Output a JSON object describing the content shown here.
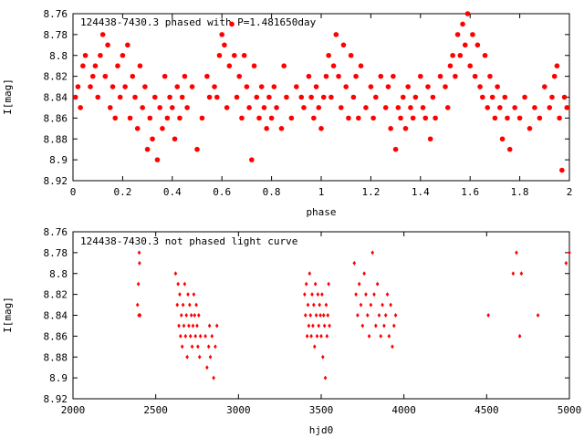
{
  "chart_data": [
    {
      "type": "scatter",
      "title": "124438-7430.3 phased with P=1.481650day",
      "xlabel": "phase",
      "ylabel": "I[mag]",
      "xlim": [
        0,
        2
      ],
      "ylim": [
        8.76,
        8.92
      ],
      "y_inverted": true,
      "grid": false,
      "marker_color": "#ff0000",
      "marker": "filled-circle",
      "x_ticks": [
        "0",
        "0.2",
        "0.4",
        "0.6",
        "0.8",
        "1",
        "1.2",
        "1.4",
        "1.6",
        "1.8",
        "2"
      ],
      "y_ticks": [
        "8.76",
        "8.78",
        "8.8",
        "8.82",
        "8.84",
        "8.86",
        "8.88",
        "8.9",
        "8.92"
      ],
      "points": [
        [
          0.01,
          8.84
        ],
        [
          0.02,
          8.83
        ],
        [
          0.03,
          8.85
        ],
        [
          0.04,
          8.81
        ],
        [
          0.05,
          8.8
        ],
        [
          0.07,
          8.83
        ],
        [
          0.08,
          8.82
        ],
        [
          0.09,
          8.81
        ],
        [
          0.1,
          8.84
        ],
        [
          0.11,
          8.8
        ],
        [
          0.12,
          8.78
        ],
        [
          0.13,
          8.82
        ],
        [
          0.14,
          8.79
        ],
        [
          0.15,
          8.85
        ],
        [
          0.16,
          8.83
        ],
        [
          0.17,
          8.86
        ],
        [
          0.18,
          8.81
        ],
        [
          0.19,
          8.84
        ],
        [
          0.2,
          8.8
        ],
        [
          0.21,
          8.83
        ],
        [
          0.22,
          8.79
        ],
        [
          0.23,
          8.86
        ],
        [
          0.24,
          8.82
        ],
        [
          0.25,
          8.84
        ],
        [
          0.26,
          8.87
        ],
        [
          0.27,
          8.81
        ],
        [
          0.28,
          8.85
        ],
        [
          0.29,
          8.83
        ],
        [
          0.3,
          8.89
        ],
        [
          0.31,
          8.86
        ],
        [
          0.32,
          8.88
        ],
        [
          0.33,
          8.84
        ],
        [
          0.34,
          8.9
        ],
        [
          0.35,
          8.85
        ],
        [
          0.36,
          8.87
        ],
        [
          0.37,
          8.82
        ],
        [
          0.38,
          8.86
        ],
        [
          0.39,
          8.84
        ],
        [
          0.4,
          8.85
        ],
        [
          0.41,
          8.88
        ],
        [
          0.42,
          8.83
        ],
        [
          0.43,
          8.86
        ],
        [
          0.44,
          8.84
        ],
        [
          0.45,
          8.82
        ],
        [
          0.46,
          8.85
        ],
        [
          0.48,
          8.83
        ],
        [
          0.5,
          8.89
        ],
        [
          0.52,
          8.86
        ],
        [
          0.54,
          8.82
        ],
        [
          0.55,
          8.84
        ],
        [
          0.57,
          8.83
        ],
        [
          0.58,
          8.84
        ],
        [
          0.59,
          8.8
        ],
        [
          0.6,
          8.78
        ],
        [
          0.61,
          8.79
        ],
        [
          0.62,
          8.85
        ],
        [
          0.63,
          8.81
        ],
        [
          0.64,
          8.77
        ],
        [
          0.65,
          8.8
        ],
        [
          0.66,
          8.84
        ],
        [
          0.67,
          8.82
        ],
        [
          0.68,
          8.86
        ],
        [
          0.69,
          8.8
        ],
        [
          0.7,
          8.83
        ],
        [
          0.71,
          8.85
        ],
        [
          0.72,
          8.9
        ],
        [
          0.73,
          8.81
        ],
        [
          0.74,
          8.84
        ],
        [
          0.75,
          8.86
        ],
        [
          0.76,
          8.83
        ],
        [
          0.77,
          8.85
        ],
        [
          0.78,
          8.87
        ],
        [
          0.79,
          8.84
        ],
        [
          0.8,
          8.86
        ],
        [
          0.81,
          8.83
        ],
        [
          0.82,
          8.85
        ],
        [
          0.84,
          8.87
        ],
        [
          0.85,
          8.81
        ],
        [
          0.86,
          8.84
        ],
        [
          0.88,
          8.86
        ],
        [
          0.9,
          8.83
        ],
        [
          0.92,
          8.84
        ],
        [
          0.93,
          8.85
        ],
        [
          0.95,
          8.82
        ],
        [
          0.96,
          8.84
        ],
        [
          0.97,
          8.86
        ],
        [
          0.98,
          8.83
        ],
        [
          0.99,
          8.85
        ],
        [
          1.0,
          8.87
        ],
        [
          1.01,
          8.84
        ],
        [
          1.02,
          8.82
        ],
        [
          1.03,
          8.8
        ],
        [
          1.04,
          8.84
        ],
        [
          1.05,
          8.81
        ],
        [
          1.06,
          8.78
        ],
        [
          1.07,
          8.82
        ],
        [
          1.08,
          8.85
        ],
        [
          1.09,
          8.79
        ],
        [
          1.1,
          8.83
        ],
        [
          1.11,
          8.86
        ],
        [
          1.12,
          8.8
        ],
        [
          1.13,
          8.84
        ],
        [
          1.14,
          8.82
        ],
        [
          1.15,
          8.86
        ],
        [
          1.16,
          8.81
        ],
        [
          1.18,
          8.85
        ],
        [
          1.2,
          8.83
        ],
        [
          1.21,
          8.86
        ],
        [
          1.22,
          8.84
        ],
        [
          1.24,
          8.82
        ],
        [
          1.26,
          8.85
        ],
        [
          1.27,
          8.83
        ],
        [
          1.28,
          8.87
        ],
        [
          1.29,
          8.82
        ],
        [
          1.3,
          8.89
        ],
        [
          1.31,
          8.85
        ],
        [
          1.32,
          8.86
        ],
        [
          1.33,
          8.84
        ],
        [
          1.34,
          8.87
        ],
        [
          1.35,
          8.83
        ],
        [
          1.36,
          8.85
        ],
        [
          1.37,
          8.86
        ],
        [
          1.38,
          8.84
        ],
        [
          1.4,
          8.82
        ],
        [
          1.41,
          8.85
        ],
        [
          1.42,
          8.86
        ],
        [
          1.43,
          8.83
        ],
        [
          1.44,
          8.88
        ],
        [
          1.45,
          8.84
        ],
        [
          1.46,
          8.86
        ],
        [
          1.48,
          8.82
        ],
        [
          1.5,
          8.83
        ],
        [
          1.51,
          8.85
        ],
        [
          1.52,
          8.81
        ],
        [
          1.53,
          8.8
        ],
        [
          1.54,
          8.82
        ],
        [
          1.55,
          8.78
        ],
        [
          1.56,
          8.8
        ],
        [
          1.57,
          8.77
        ],
        [
          1.58,
          8.79
        ],
        [
          1.59,
          8.76
        ],
        [
          1.6,
          8.81
        ],
        [
          1.61,
          8.78
        ],
        [
          1.62,
          8.82
        ],
        [
          1.63,
          8.79
        ],
        [
          1.64,
          8.83
        ],
        [
          1.65,
          8.84
        ],
        [
          1.66,
          8.8
        ],
        [
          1.67,
          8.85
        ],
        [
          1.68,
          8.82
        ],
        [
          1.69,
          8.84
        ],
        [
          1.7,
          8.86
        ],
        [
          1.71,
          8.83
        ],
        [
          1.72,
          8.85
        ],
        [
          1.73,
          8.88
        ],
        [
          1.74,
          8.84
        ],
        [
          1.75,
          8.86
        ],
        [
          1.76,
          8.89
        ],
        [
          1.78,
          8.85
        ],
        [
          1.8,
          8.86
        ],
        [
          1.82,
          8.84
        ],
        [
          1.84,
          8.87
        ],
        [
          1.86,
          8.85
        ],
        [
          1.88,
          8.86
        ],
        [
          1.9,
          8.83
        ],
        [
          1.92,
          8.85
        ],
        [
          1.93,
          8.84
        ],
        [
          1.94,
          8.82
        ],
        [
          1.95,
          8.81
        ],
        [
          1.96,
          8.86
        ],
        [
          1.97,
          8.91
        ],
        [
          1.98,
          8.84
        ],
        [
          1.99,
          8.85
        ]
      ]
    },
    {
      "type": "scatter",
      "title": "124438-7430.3 not phased light curve",
      "xlabel": "hjd0",
      "ylabel": "I[mag]",
      "xlim": [
        2000,
        5000
      ],
      "ylim": [
        8.76,
        8.92
      ],
      "y_inverted": true,
      "grid": false,
      "marker_color": "#ff0000",
      "marker": "diamond",
      "x_ticks": [
        "2000",
        "2500",
        "3000",
        "3500",
        "4000",
        "4500",
        "5000"
      ],
      "y_ticks": [
        "8.76",
        "8.78",
        "8.8",
        "8.82",
        "8.84",
        "8.86",
        "8.88",
        "8.9",
        "8.92"
      ],
      "points": [
        [
          2390,
          8.83
        ],
        [
          2395,
          8.81
        ],
        [
          2398,
          8.84
        ],
        [
          2400,
          8.78
        ],
        [
          2402,
          8.79
        ],
        [
          2405,
          8.84
        ],
        [
          2620,
          8.8
        ],
        [
          2630,
          8.83
        ],
        [
          2635,
          8.81
        ],
        [
          2640,
          8.85
        ],
        [
          2645,
          8.82
        ],
        [
          2650,
          8.86
        ],
        [
          2655,
          8.84
        ],
        [
          2660,
          8.87
        ],
        [
          2665,
          8.83
        ],
        [
          2670,
          8.85
        ],
        [
          2675,
          8.81
        ],
        [
          2680,
          8.86
        ],
        [
          2685,
          8.84
        ],
        [
          2690,
          8.88
        ],
        [
          2695,
          8.82
        ],
        [
          2700,
          8.85
        ],
        [
          2705,
          8.83
        ],
        [
          2710,
          8.86
        ],
        [
          2715,
          8.84
        ],
        [
          2720,
          8.87
        ],
        [
          2725,
          8.85
        ],
        [
          2730,
          8.82
        ],
        [
          2735,
          8.84
        ],
        [
          2740,
          8.86
        ],
        [
          2745,
          8.83
        ],
        [
          2750,
          8.85
        ],
        [
          2755,
          8.87
        ],
        [
          2760,
          8.84
        ],
        [
          2765,
          8.88
        ],
        [
          2770,
          8.86
        ],
        [
          2800,
          8.86
        ],
        [
          2810,
          8.89
        ],
        [
          2820,
          8.87
        ],
        [
          2825,
          8.85
        ],
        [
          2830,
          8.88
        ],
        [
          2840,
          8.86
        ],
        [
          2850,
          8.9
        ],
        [
          2860,
          8.87
        ],
        [
          2870,
          8.85
        ],
        [
          3400,
          8.82
        ],
        [
          3405,
          8.84
        ],
        [
          3410,
          8.81
        ],
        [
          3415,
          8.86
        ],
        [
          3420,
          8.83
        ],
        [
          3425,
          8.85
        ],
        [
          3430,
          8.8
        ],
        [
          3435,
          8.84
        ],
        [
          3440,
          8.86
        ],
        [
          3445,
          8.82
        ],
        [
          3450,
          8.85
        ],
        [
          3455,
          8.83
        ],
        [
          3460,
          8.87
        ],
        [
          3465,
          8.81
        ],
        [
          3470,
          8.84
        ],
        [
          3475,
          8.86
        ],
        [
          3480,
          8.82
        ],
        [
          3485,
          8.85
        ],
        [
          3490,
          8.83
        ],
        [
          3495,
          8.84
        ],
        [
          3500,
          8.86
        ],
        [
          3505,
          8.82
        ],
        [
          3510,
          8.88
        ],
        [
          3515,
          8.84
        ],
        [
          3520,
          8.85
        ],
        [
          3525,
          8.9
        ],
        [
          3530,
          8.83
        ],
        [
          3535,
          8.86
        ],
        [
          3540,
          8.84
        ],
        [
          3545,
          8.81
        ],
        [
          3550,
          8.85
        ],
        [
          3700,
          8.79
        ],
        [
          3710,
          8.82
        ],
        [
          3720,
          8.84
        ],
        [
          3730,
          8.81
        ],
        [
          3740,
          8.83
        ],
        [
          3750,
          8.85
        ],
        [
          3760,
          8.8
        ],
        [
          3770,
          8.82
        ],
        [
          3780,
          8.84
        ],
        [
          3790,
          8.86
        ],
        [
          3800,
          8.83
        ],
        [
          3810,
          8.78
        ],
        [
          3820,
          8.82
        ],
        [
          3830,
          8.85
        ],
        [
          3840,
          8.81
        ],
        [
          3850,
          8.84
        ],
        [
          3860,
          8.86
        ],
        [
          3870,
          8.83
        ],
        [
          3880,
          8.85
        ],
        [
          3890,
          8.84
        ],
        [
          3900,
          8.82
        ],
        [
          3910,
          8.86
        ],
        [
          3920,
          8.83
        ],
        [
          3930,
          8.87
        ],
        [
          3940,
          8.85
        ],
        [
          3950,
          8.84
        ],
        [
          4510,
          8.84
        ],
        [
          4660,
          8.8
        ],
        [
          4680,
          8.78
        ],
        [
          4700,
          8.86
        ],
        [
          4710,
          8.8
        ],
        [
          4810,
          8.84
        ],
        [
          4980,
          8.79
        ],
        [
          5000,
          8.78
        ]
      ]
    }
  ]
}
